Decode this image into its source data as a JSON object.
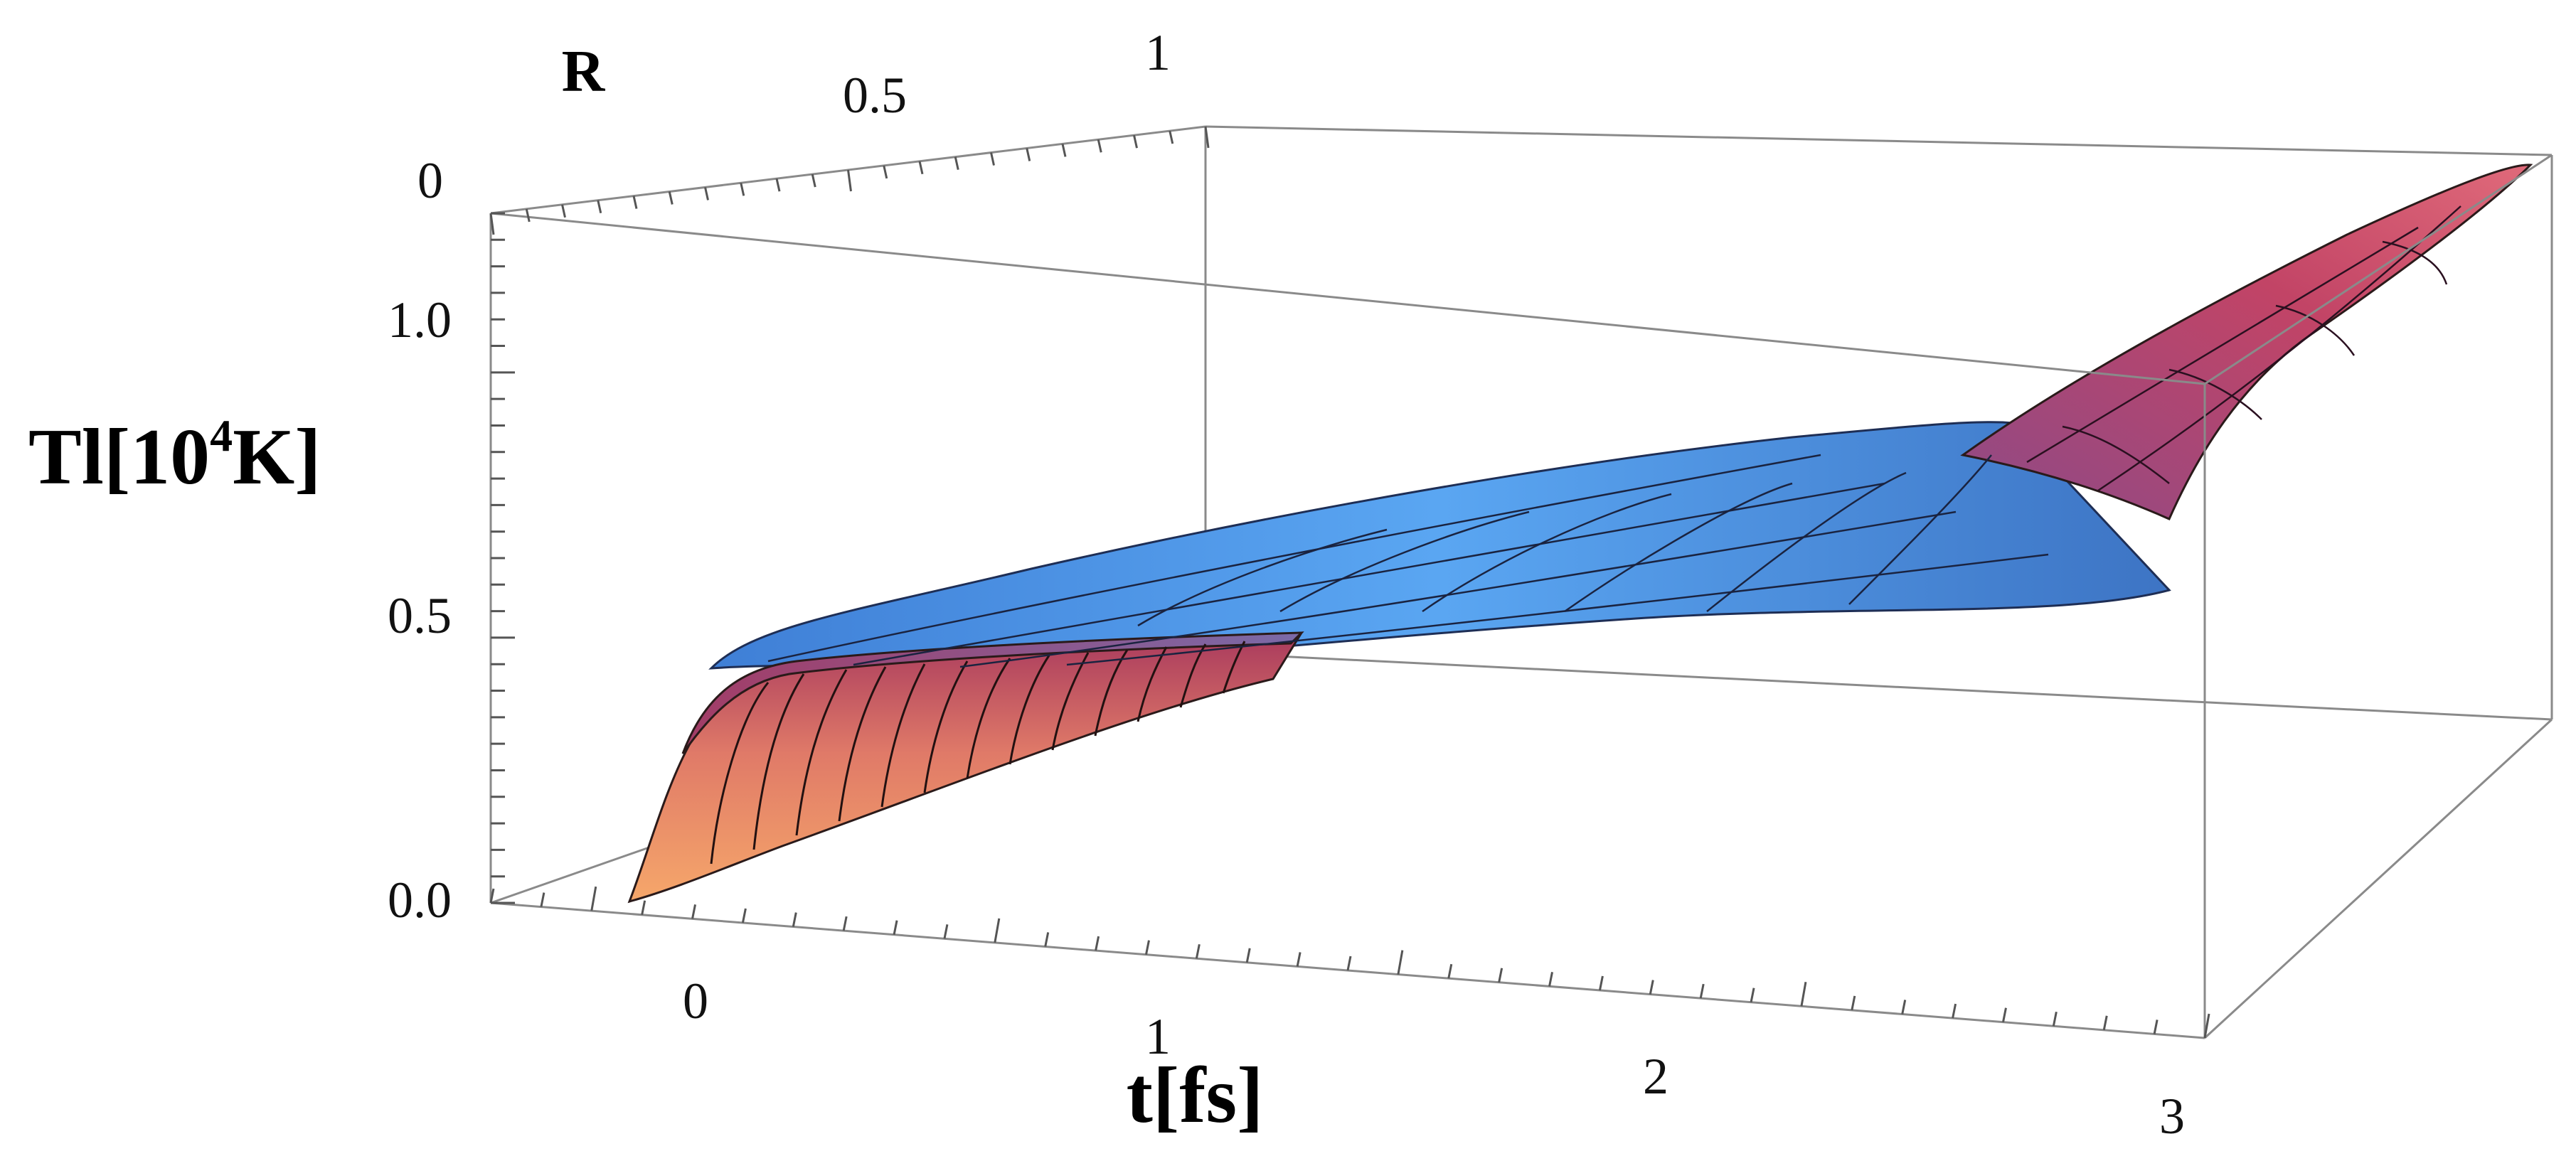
{
  "chart_data": {
    "type": "surface3d",
    "title": "",
    "xlabel": "t[fs]",
    "ylabel": "R",
    "zlabel_main": "Tl[10",
    "zlabel_sup": "4",
    "zlabel_unit": "K]",
    "x_ticks": [
      "0",
      "1",
      "2",
      "3"
    ],
    "y_ticks": [
      "0",
      "0.5",
      "1"
    ],
    "z_ticks": [
      "0.0",
      "0.5",
      "1.0"
    ],
    "xlim": [
      -0.45,
      3.05
    ],
    "ylim": [
      0,
      1
    ],
    "zlim": [
      0,
      1.25
    ],
    "surface": {
      "description_points": [
        {
          "t": -0.25,
          "R": 0,
          "Tl": 0.0
        },
        {
          "t": 0.0,
          "R": 0,
          "Tl": 0.35
        },
        {
          "t": 0.25,
          "R": 0,
          "Tl": 0.45
        },
        {
          "t": 1.0,
          "R": 0,
          "Tl": 0.55
        },
        {
          "t": 2.0,
          "R": 0,
          "Tl": 0.72
        },
        {
          "t": 2.7,
          "R": 0,
          "Tl": 0.9
        },
        {
          "t": 3.0,
          "R": 0,
          "Tl": 1.22
        }
      ],
      "colors": {
        "hot": "#f08a5d",
        "mid": "#b83b5e",
        "cool": "#5da9f5"
      }
    },
    "grid": false,
    "box": true
  }
}
